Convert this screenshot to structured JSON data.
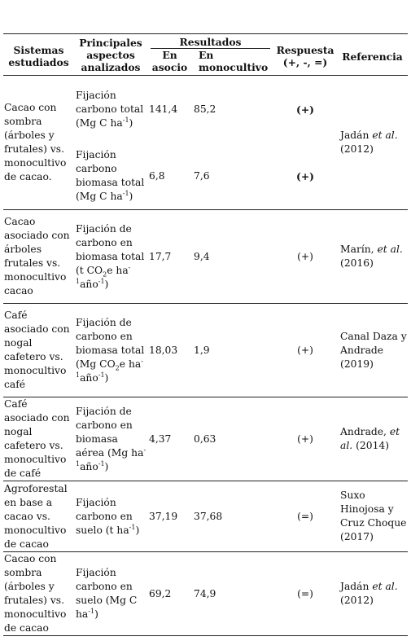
{
  "headers": {
    "sistemas": "Sistemas estudiados",
    "principales": "Principales aspectos analizados",
    "resultados": "Resultados",
    "en_asocio": "En asocio",
    "en_monocultivo": "En monocultivo",
    "respuesta_l1": "Respuesta",
    "respuesta_l2": "(+, -, =)",
    "referencia": "Referencia"
  },
  "rows": [
    {
      "sistema": "Cacao con sombra (árboles y frutales) vs. monocultivo de cacao.",
      "sub": [
        {
          "aspecto_pre": "Fijación carbono total (Mg C ha",
          "sup": "-1",
          "aspecto_post": ")",
          "asocio": "141,4",
          "mono": "85,2",
          "respuesta": "(+)"
        },
        {
          "aspecto_pre": "Fijación carbono biomasa total (Mg C ha",
          "sup": "-1",
          "aspecto_post": ")",
          "asocio": "6,8",
          "mono": "7,6",
          "respuesta": "(+)"
        }
      ],
      "ref_author": "Jadán",
      "ref_etal": "et al.",
      "ref_year": "(2012)"
    },
    {
      "sistema": "Cacao asociado con árboles frutales vs. monocultivo cacao",
      "aspecto_pre": "Fijación de carbono en biomasa total (t CO",
      "sub_txt": "2",
      "aspecto_mid": "e ha",
      "sup1": "-1",
      "aspecto_mid2": "año",
      "sup2": "-1",
      "aspecto_post": ")",
      "asocio": "17,7",
      "mono": "9,4",
      "respuesta": "(+)",
      "ref_author": "Marín,",
      "ref_etal": "et al.",
      "ref_year": "(2016)"
    },
    {
      "sistema": "Café asociado con nogal cafetero vs. monocultivo café",
      "aspecto_pre": "Fijación de carbono en biomasa total (Mg CO",
      "sub_txt": "2",
      "aspecto_mid": "e ha",
      "sup1": "-1",
      "aspecto_mid2": "año",
      "sup2": "-1",
      "aspecto_post": ")",
      "asocio": "18,03",
      "mono": "1,9",
      "respuesta": "(+)",
      "ref": "Canal Daza y Andrade (2019)"
    },
    {
      "sistema": "Café asociado con nogal cafetero vs. monocultivo de café",
      "aspecto_pre": "Fijación de carbono en biomasa aérea (Mg ha",
      "sup1": "-1",
      "aspecto_mid2": "año",
      "sup2": "-1",
      "aspecto_post": ")",
      "asocio": "4,37",
      "mono": "0,63",
      "respuesta": "(+)",
      "ref_author": "Andrade,",
      "ref_etal": "et al.",
      "ref_year": "(2014)"
    },
    {
      "sistema": "Agroforestal en base a cacao vs. monocultivo de cacao",
      "aspecto_pre": "Fijación carbono en suelo (t ha",
      "sup1": "-1",
      "aspecto_post": ")",
      "asocio": "37,19",
      "mono": "37,68",
      "respuesta": "(=)",
      "ref": "Suxo Hinojosa y Cruz Choque (2017)"
    },
    {
      "sistema": "Cacao con sombra (árboles y frutales) vs. monocultivo de cacao",
      "aspecto_pre": "Fijación carbono en suelo (Mg C ha",
      "sup1": "-1",
      "aspecto_post": ")",
      "asocio": "69,2",
      "mono": "74,9",
      "respuesta": "(=)",
      "ref_author": "Jadán",
      "ref_etal": "et al.",
      "ref_year": "(2012)"
    }
  ]
}
